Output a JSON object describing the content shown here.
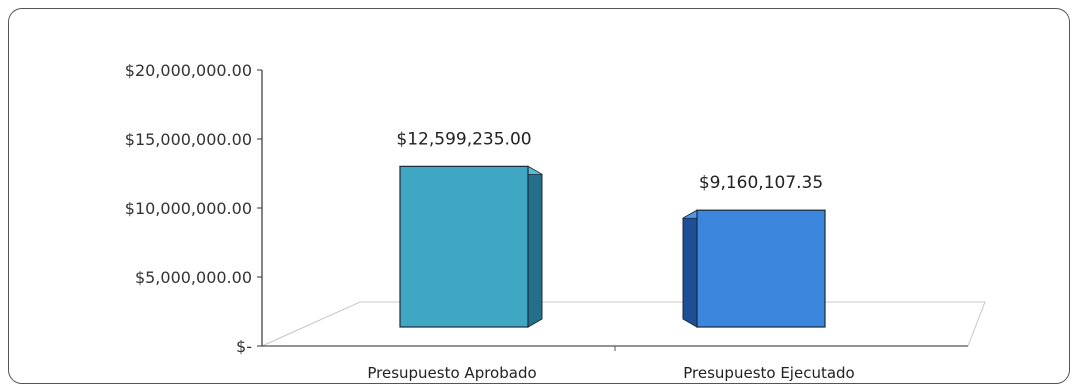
{
  "chart_data": {
    "type": "bar",
    "categories": [
      "Presupuesto Aprobado",
      "Presupuesto Ejecutado"
    ],
    "values": [
      12599235.0,
      9160107.35
    ],
    "data_labels": [
      "$12,599,235.00",
      "$9,160,107.35"
    ],
    "y_ticks": [
      {
        "value": 0,
        "label": "$-"
      },
      {
        "value": 5000000,
        "label": "$5,000,000.00"
      },
      {
        "value": 10000000,
        "label": "$10,000,000.00"
      },
      {
        "value": 15000000,
        "label": "$15,000,000.00"
      },
      {
        "value": 20000000,
        "label": "$20,000,000.00"
      }
    ],
    "ylim": [
      0,
      20000000
    ],
    "title": "",
    "xlabel": "",
    "ylabel": "",
    "grid": false,
    "legend": "none",
    "style": "3d-column",
    "colors": {
      "front": [
        "#3fa7c4",
        "#3d86de"
      ],
      "side": [
        "#24708a",
        "#1e4f96"
      ],
      "top": [
        "#5dbad4",
        "#4f97e5"
      ],
      "edge": "#1b2a38",
      "axis": "#333333",
      "floor": "#c8c8c8"
    }
  }
}
